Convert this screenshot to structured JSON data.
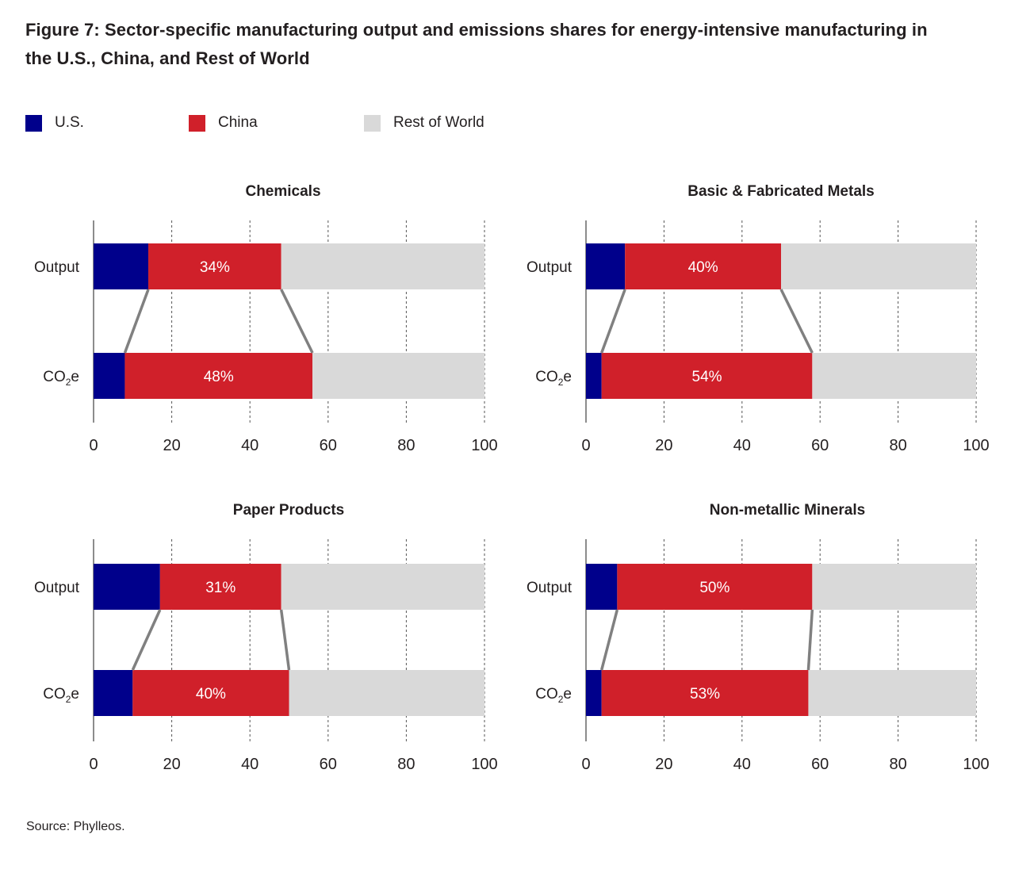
{
  "title": "Figure 7: Sector-specific manufacturing output and emissions shares for energy-intensive manufacturing in the U.S., China, and Rest of World",
  "legend": [
    {
      "label": "U.S.",
      "color": "#00008b"
    },
    {
      "label": "China",
      "color": "#d0202a"
    },
    {
      "label": "Rest of World",
      "color": "#d9d9d9"
    }
  ],
  "source": "Source: Phylleos.",
  "colors": {
    "us": "#00008b",
    "china": "#d0202a",
    "row": "#d9d9d9",
    "connector": "#808080",
    "bar_label": "#ffffff"
  },
  "chart_data": [
    {
      "type": "bar",
      "orientation": "horizontal-stacked",
      "title": "Chemicals",
      "categories": [
        "Output",
        "CO2e"
      ],
      "category_display": [
        {
          "main": "Output",
          "sub": ""
        },
        {
          "main": "CO",
          "sub": "2",
          "tail": "e"
        }
      ],
      "series": [
        {
          "name": "U.S.",
          "values": [
            14,
            8
          ]
        },
        {
          "name": "China",
          "values": [
            34,
            48
          ]
        },
        {
          "name": "Rest of World",
          "values": [
            52,
            44
          ]
        }
      ],
      "data_labels": [
        "34%",
        "48%"
      ],
      "xlim": [
        0,
        100
      ],
      "xticks": [
        0,
        20,
        40,
        60,
        80,
        100
      ],
      "grid": "vertical dashed"
    },
    {
      "type": "bar",
      "orientation": "horizontal-stacked",
      "title": "Basic & Fabricated Metals",
      "categories": [
        "Output",
        "CO2e"
      ],
      "series": [
        {
          "name": "U.S.",
          "values": [
            10,
            4
          ]
        },
        {
          "name": "China",
          "values": [
            40,
            54
          ]
        },
        {
          "name": "Rest of World",
          "values": [
            50,
            42
          ]
        }
      ],
      "data_labels": [
        "40%",
        "54%"
      ],
      "xlim": [
        0,
        100
      ],
      "xticks": [
        0,
        20,
        40,
        60,
        80,
        100
      ],
      "grid": "vertical dashed"
    },
    {
      "type": "bar",
      "orientation": "horizontal-stacked",
      "title": "Paper Products",
      "categories": [
        "Output",
        "CO2e"
      ],
      "category_display": [
        {
          "main": "Output",
          "sub": ""
        },
        {
          "main": "CO",
          "sub": "2",
          "tail": "e"
        }
      ],
      "series": [
        {
          "name": "U.S.",
          "values": [
            17,
            10
          ]
        },
        {
          "name": "China",
          "values": [
            31,
            40
          ]
        },
        {
          "name": "Rest of World",
          "values": [
            52,
            50
          ]
        }
      ],
      "data_labels": [
        "31%",
        "40%"
      ],
      "xlim": [
        0,
        100
      ],
      "xticks": [
        0,
        20,
        40,
        60,
        80,
        100
      ],
      "grid": "vertical dashed"
    },
    {
      "type": "bar",
      "orientation": "horizontal-stacked",
      "title": "Non-metallic Minerals",
      "categories": [
        "Output",
        "CO2e"
      ],
      "series": [
        {
          "name": "U.S.",
          "values": [
            8,
            4
          ]
        },
        {
          "name": "China",
          "values": [
            50,
            53
          ]
        },
        {
          "name": "Rest of World",
          "values": [
            42,
            43
          ]
        }
      ],
      "data_labels": [
        "50%",
        "53%"
      ],
      "xlim": [
        0,
        100
      ],
      "xticks": [
        0,
        20,
        40,
        60,
        80,
        100
      ],
      "grid": "vertical dashed"
    }
  ]
}
